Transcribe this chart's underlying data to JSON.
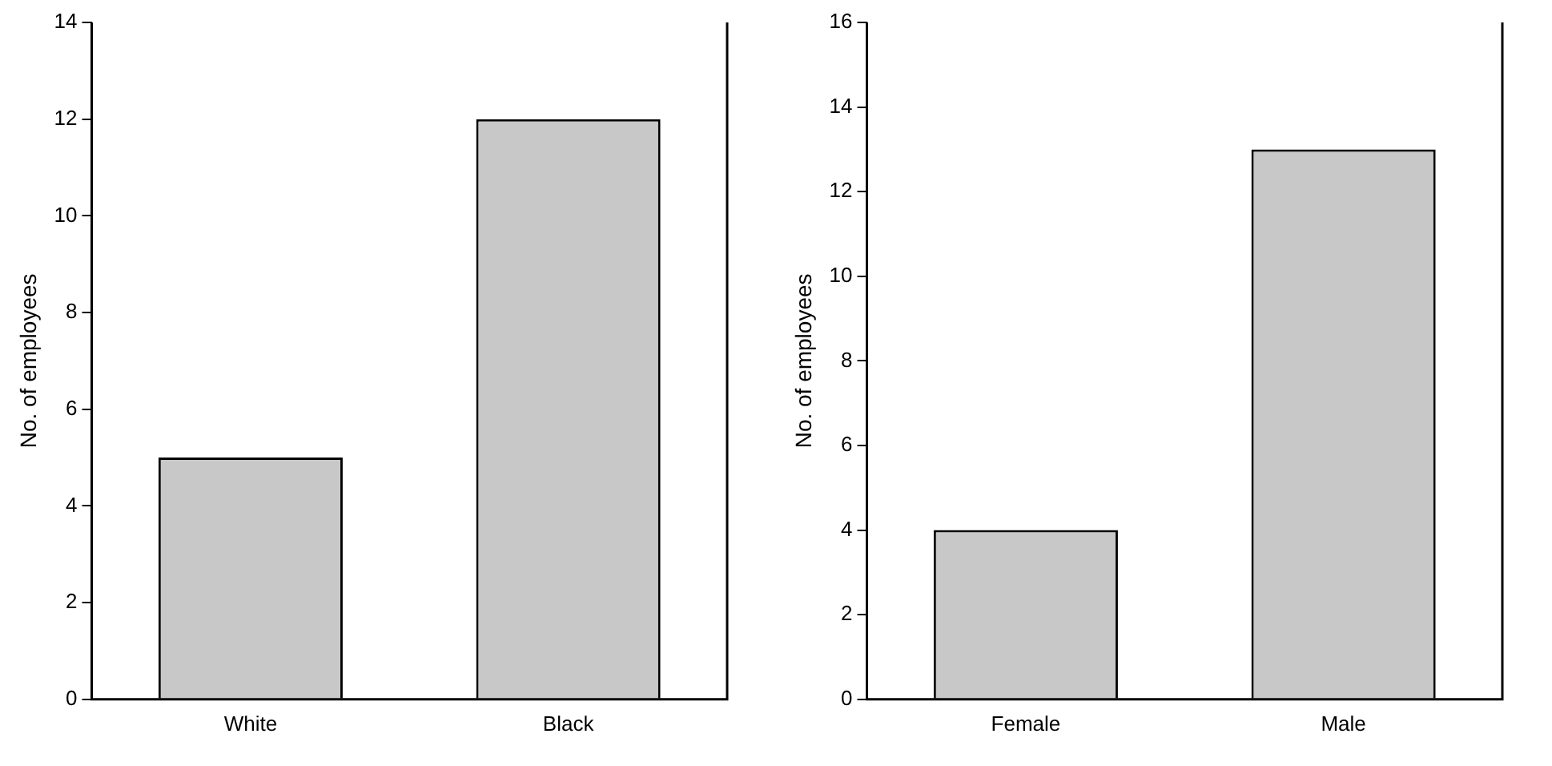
{
  "chart_data": [
    {
      "type": "bar",
      "ylabel": "No. of employees",
      "categories": [
        "White",
        "Black"
      ],
      "values": [
        5,
        12
      ],
      "color": "#c8c8c8",
      "ylim": [
        0,
        14
      ],
      "yticks": [
        0,
        2,
        4,
        6,
        8,
        10,
        12,
        14
      ],
      "grid": false
    },
    {
      "type": "bar",
      "ylabel": "No. of employees",
      "categories": [
        "Female",
        "Male"
      ],
      "values": [
        4,
        13
      ],
      "color": "#c8c8c8",
      "ylim": [
        0,
        16
      ],
      "yticks": [
        0,
        2,
        4,
        6,
        8,
        10,
        12,
        14,
        16
      ],
      "grid": false
    }
  ]
}
